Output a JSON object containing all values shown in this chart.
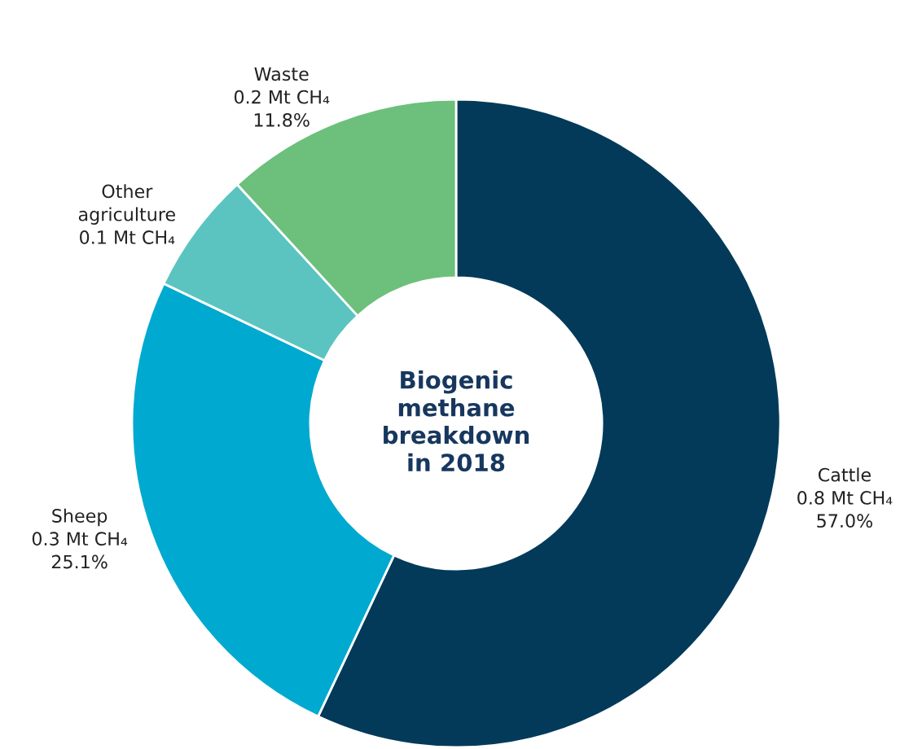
{
  "chart_data": {
    "type": "donut",
    "title": "Biogenic\nmethane\nbreakdown\nin 2018",
    "categories": [
      "Cattle\n0.8 Mt CH₄",
      "Sheep\n0.3 Mt CH₄",
      "Other\nagriculture\n0.1 Mt CH₄",
      "Waste\n0.2 Mt CH₄"
    ],
    "values": [
      57.0,
      25.1,
      6.1,
      11.8
    ],
    "value_labels": [
      "57.0%",
      "25.1%",
      null,
      "11.8%"
    ],
    "colors": [
      "#033a5a",
      "#00a9d0",
      "#5bc4c0",
      "#6cc07b"
    ]
  }
}
